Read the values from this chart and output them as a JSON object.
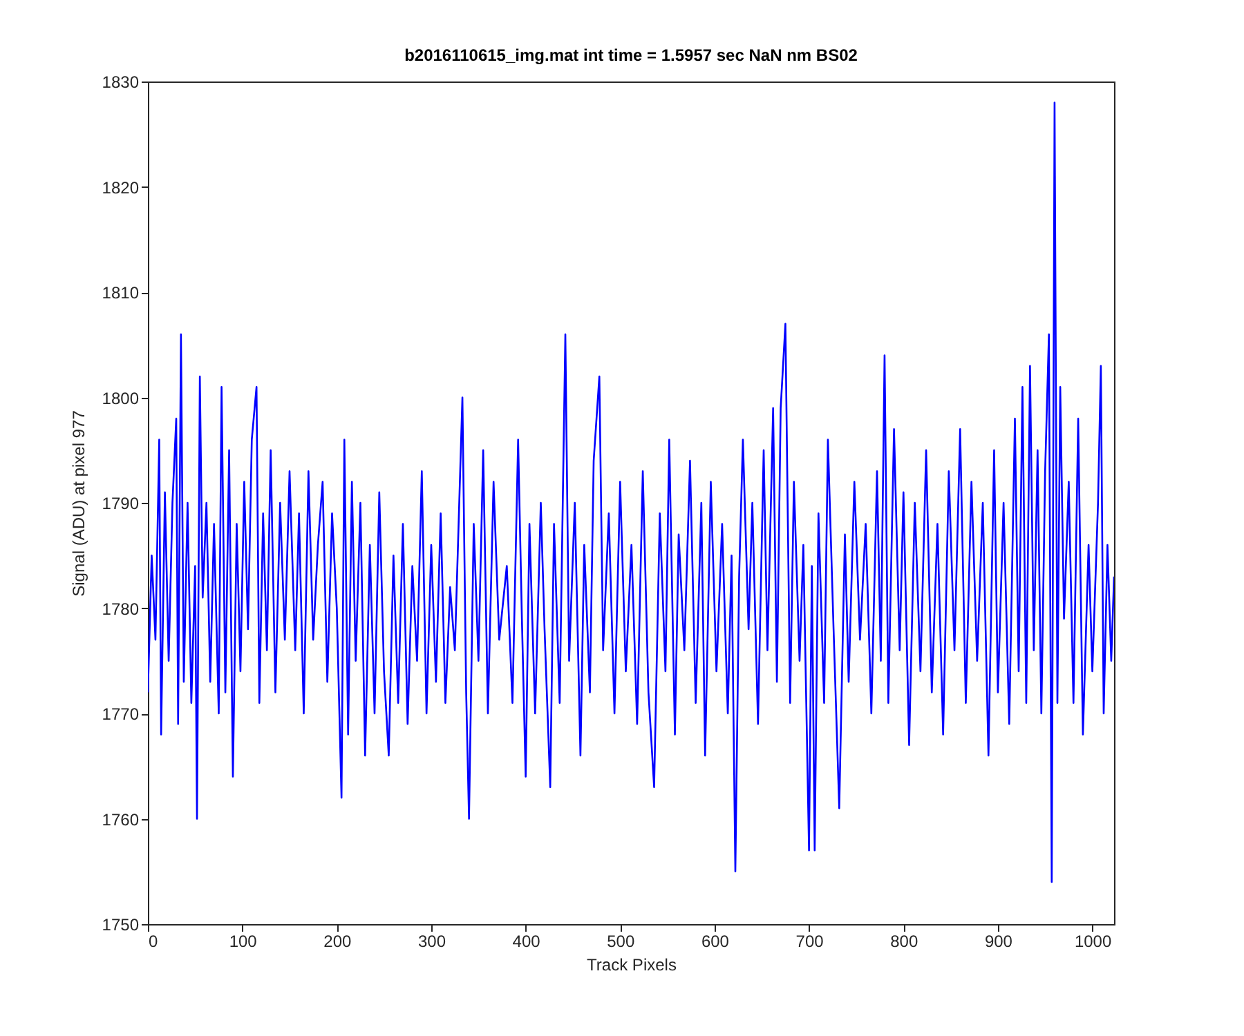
{
  "chart_data": {
    "type": "line",
    "title": "b2016110615_img.mat int time = 1.5957 sec  NaN nm BS02",
    "xlabel": "Track Pixels",
    "ylabel": "Signal (ADU) at pixel 977",
    "xlim": [
      0,
      1023
    ],
    "xticks": [
      0,
      100,
      200,
      300,
      400,
      500,
      600,
      700,
      800,
      900,
      1000
    ],
    "ylim": [
      1750,
      1830
    ],
    "yticks": [
      1750,
      1760,
      1770,
      1780,
      1790,
      1800,
      1810,
      1820,
      1830
    ],
    "grid": false,
    "marker": "none",
    "line_style": "solid",
    "series": [
      {
        "color": "#0000ff",
        "x": [
          0,
          4,
          8,
          12,
          14,
          18,
          22,
          26,
          30,
          32,
          35,
          38,
          42,
          46,
          50,
          52,
          55,
          58,
          62,
          66,
          70,
          75,
          78,
          82,
          86,
          90,
          94,
          98,
          102,
          106,
          110,
          115,
          118,
          122,
          126,
          130,
          135,
          140,
          145,
          150,
          156,
          160,
          165,
          170,
          175,
          180,
          185,
          190,
          195,
          200,
          205,
          208,
          212,
          216,
          220,
          225,
          230,
          235,
          240,
          245,
          250,
          255,
          260,
          265,
          270,
          275,
          280,
          285,
          290,
          295,
          300,
          305,
          310,
          315,
          320,
          325,
          330,
          333,
          337,
          340,
          345,
          350,
          355,
          360,
          366,
          372,
          380,
          386,
          392,
          396,
          400,
          404,
          410,
          416,
          420,
          426,
          430,
          436,
          442,
          446,
          452,
          458,
          462,
          468,
          472,
          478,
          482,
          488,
          494,
          500,
          506,
          512,
          518,
          524,
          530,
          536,
          542,
          548,
          552,
          558,
          562,
          568,
          574,
          580,
          586,
          590,
          596,
          602,
          608,
          614,
          618,
          622,
          626,
          630,
          636,
          640,
          646,
          652,
          656,
          662,
          666,
          670,
          675,
          680,
          684,
          690,
          694,
          700,
          703,
          706,
          710,
          716,
          720,
          726,
          732,
          738,
          742,
          748,
          754,
          760,
          766,
          772,
          776,
          780,
          784,
          790,
          796,
          800,
          806,
          812,
          818,
          824,
          830,
          836,
          842,
          848,
          854,
          860,
          866,
          872,
          878,
          884,
          890,
          896,
          900,
          906,
          912,
          918,
          922,
          926,
          930,
          934,
          938,
          942,
          946,
          950,
          954,
          957,
          960,
          963,
          966,
          970,
          975,
          980,
          985,
          990,
          996,
          1000,
          1006,
          1009,
          1012,
          1016,
          1020,
          1023
        ],
        "values": [
          1772,
          1785,
          1777,
          1796,
          1768,
          1791,
          1775,
          1790,
          1798,
          1769,
          1806,
          1773,
          1790,
          1771,
          1784,
          1760,
          1802,
          1781,
          1790,
          1773,
          1788,
          1770,
          1801,
          1772,
          1795,
          1764,
          1788,
          1774,
          1792,
          1778,
          1796,
          1801,
          1771,
          1789,
          1776,
          1795,
          1772,
          1790,
          1777,
          1793,
          1776,
          1789,
          1770,
          1793,
          1777,
          1786,
          1792,
          1773,
          1789,
          1780,
          1762,
          1796,
          1768,
          1792,
          1775,
          1790,
          1766,
          1786,
          1770,
          1791,
          1774,
          1766,
          1785,
          1771,
          1788,
          1769,
          1784,
          1775,
          1793,
          1770,
          1786,
          1773,
          1789,
          1771,
          1782,
          1776,
          1791,
          1800,
          1772,
          1760,
          1788,
          1775,
          1795,
          1770,
          1792,
          1777,
          1784,
          1771,
          1796,
          1779,
          1764,
          1788,
          1770,
          1790,
          1778,
          1763,
          1788,
          1771,
          1806,
          1775,
          1790,
          1766,
          1786,
          1772,
          1794,
          1802,
          1776,
          1789,
          1770,
          1792,
          1774,
          1786,
          1769,
          1793,
          1772,
          1763,
          1789,
          1774,
          1796,
          1768,
          1787,
          1776,
          1794,
          1771,
          1790,
          1766,
          1792,
          1774,
          1788,
          1770,
          1785,
          1755,
          1783,
          1796,
          1778,
          1790,
          1769,
          1795,
          1776,
          1799,
          1773,
          1799,
          1807,
          1771,
          1792,
          1775,
          1786,
          1757,
          1784,
          1757,
          1789,
          1771,
          1796,
          1778,
          1761,
          1787,
          1773,
          1792,
          1777,
          1788,
          1770,
          1793,
          1775,
          1804,
          1771,
          1797,
          1776,
          1791,
          1767,
          1790,
          1774,
          1795,
          1772,
          1788,
          1768,
          1793,
          1776,
          1797,
          1771,
          1792,
          1775,
          1790,
          1766,
          1795,
          1772,
          1790,
          1769,
          1798,
          1774,
          1801,
          1771,
          1803,
          1776,
          1795,
          1770,
          1793,
          1806,
          1754,
          1828,
          1771,
          1801,
          1779,
          1792,
          1771,
          1798,
          1768,
          1786,
          1774,
          1790,
          1803,
          1770,
          1786,
          1775,
          1783
        ]
      }
    ]
  }
}
